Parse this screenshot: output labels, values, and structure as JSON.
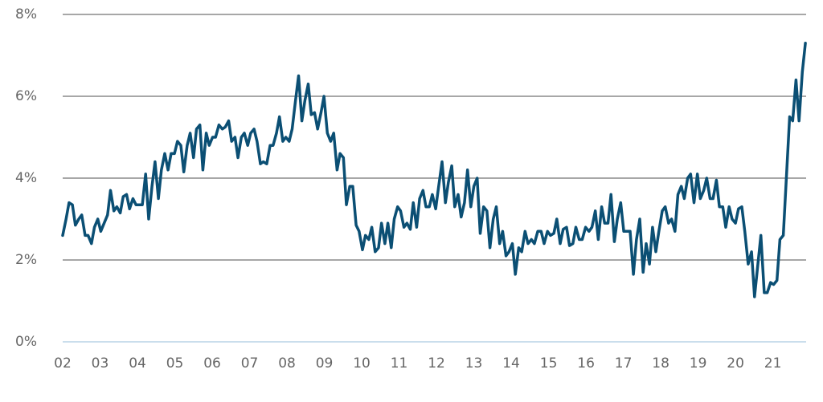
{
  "chart_data": {
    "type": "line",
    "color": "#0b4f74",
    "x": [
      2002.0,
      2002.09,
      2002.17,
      2002.26,
      2002.34,
      2002.43,
      2002.51,
      2002.6,
      2002.68,
      2002.77,
      2002.85,
      2002.94,
      2003.02,
      2003.11,
      2003.2,
      2003.28,
      2003.37,
      2003.45,
      2003.54,
      2003.62,
      2003.71,
      2003.79,
      2003.88,
      2003.96,
      2004.05,
      2004.13,
      2004.22,
      2004.3,
      2004.39,
      2004.47,
      2004.56,
      2004.64,
      2004.73,
      2004.82,
      2004.9,
      2004.99,
      2005.07,
      2005.16,
      2005.24,
      2005.33,
      2005.41,
      2005.5,
      2005.58,
      2005.67,
      2005.75,
      2005.84,
      2005.92,
      2006.01,
      2006.09,
      2006.18,
      2006.27,
      2006.35,
      2006.44,
      2006.52,
      2006.61,
      2006.69,
      2006.78,
      2006.86,
      2006.95,
      2007.03,
      2007.12,
      2007.2,
      2007.29,
      2007.37,
      2007.46,
      2007.55,
      2007.63,
      2007.72,
      2007.8,
      2007.89,
      2007.97,
      2008.06,
      2008.14,
      2008.23,
      2008.31,
      2008.4,
      2008.48,
      2008.57,
      2008.65,
      2008.74,
      2008.82,
      2008.91,
      2008.99,
      2009.08,
      2009.17,
      2009.25,
      2009.34,
      2009.42,
      2009.51,
      2009.59,
      2009.68,
      2009.76,
      2009.85,
      2009.93,
      2010.02,
      2010.1,
      2010.19,
      2010.27,
      2010.36,
      2010.45,
      2010.53,
      2010.62,
      2010.7,
      2010.79,
      2010.87,
      2010.96,
      2011.04,
      2011.13,
      2011.21,
      2011.3,
      2011.38,
      2011.47,
      2011.55,
      2011.64,
      2011.72,
      2011.81,
      2011.89,
      2011.98,
      2012.06,
      2012.15,
      2012.24,
      2012.32,
      2012.41,
      2012.49,
      2012.58,
      2012.66,
      2012.75,
      2012.83,
      2012.92,
      2013.0,
      2013.09,
      2013.17,
      2013.26,
      2013.35,
      2013.43,
      2013.52,
      2013.6,
      2013.69,
      2013.77,
      2013.86,
      2013.94,
      2014.03,
      2014.11,
      2014.2,
      2014.28,
      2014.37,
      2014.45,
      2014.54,
      2014.62,
      2014.71,
      2014.8,
      2014.88,
      2014.97,
      2015.05,
      2015.14,
      2015.22,
      2015.31,
      2015.39,
      2015.48,
      2015.56,
      2015.65,
      2015.73,
      2015.82,
      2015.9,
      2015.99,
      2016.08,
      2016.16,
      2016.25,
      2016.33,
      2016.42,
      2016.5,
      2016.59,
      2016.67,
      2016.76,
      2016.84,
      2016.93,
      2017.01,
      2017.1,
      2017.18,
      2017.27,
      2017.35,
      2017.44,
      2017.53,
      2017.61,
      2017.7,
      2017.78,
      2017.87,
      2017.95,
      2018.04,
      2018.12,
      2018.21,
      2018.29,
      2018.38,
      2018.46,
      2018.55,
      2018.63,
      2018.72,
      2018.8,
      2018.89,
      2018.98,
      2019.06,
      2019.15,
      2019.23,
      2019.32,
      2019.4,
      2019.49,
      2019.57,
      2019.66,
      2019.74,
      2019.83,
      2019.91,
      2020.0,
      2020.08,
      2020.17,
      2020.25,
      2020.34,
      2020.43,
      2020.51,
      2020.6,
      2020.68,
      2020.77,
      2020.85,
      2020.94,
      2021.02,
      2021.11,
      2021.19,
      2021.28,
      2021.36,
      2021.45,
      2021.53,
      2021.62,
      2021.7,
      2021.79,
      2021.87
    ],
    "values": [
      2.6,
      3.0,
      3.4,
      3.35,
      2.85,
      3.0,
      3.1,
      2.6,
      2.6,
      2.4,
      2.8,
      3.0,
      2.7,
      2.9,
      3.1,
      3.7,
      3.2,
      3.3,
      3.15,
      3.55,
      3.6,
      3.25,
      3.5,
      3.35,
      3.35,
      3.35,
      4.1,
      3.0,
      3.8,
      4.4,
      3.5,
      4.2,
      4.6,
      4.2,
      4.6,
      4.6,
      4.9,
      4.8,
      4.15,
      4.8,
      5.1,
      4.5,
      5.2,
      5.3,
      4.2,
      5.1,
      4.8,
      5.0,
      5.0,
      5.3,
      5.2,
      5.25,
      5.4,
      4.9,
      5.0,
      4.5,
      5.0,
      5.1,
      4.8,
      5.1,
      5.2,
      4.9,
      4.35,
      4.4,
      4.35,
      4.8,
      4.8,
      5.1,
      5.5,
      4.9,
      5.0,
      4.9,
      5.2,
      5.9,
      6.5,
      5.4,
      5.9,
      6.3,
      5.55,
      5.6,
      5.2,
      5.6,
      6.0,
      5.1,
      4.9,
      5.1,
      4.2,
      4.6,
      4.5,
      3.35,
      3.8,
      3.8,
      2.85,
      2.7,
      2.25,
      2.6,
      2.5,
      2.8,
      2.2,
      2.3,
      2.9,
      2.4,
      2.9,
      2.3,
      3.0,
      3.3,
      3.2,
      2.8,
      2.9,
      2.75,
      3.4,
      2.8,
      3.5,
      3.7,
      3.3,
      3.3,
      3.6,
      3.25,
      3.8,
      4.4,
      3.4,
      3.9,
      4.3,
      3.3,
      3.6,
      3.05,
      3.4,
      4.2,
      3.3,
      3.8,
      4.0,
      2.65,
      3.3,
      3.2,
      2.3,
      3.0,
      3.3,
      2.4,
      2.7,
      2.1,
      2.2,
      2.4,
      1.65,
      2.3,
      2.2,
      2.7,
      2.4,
      2.5,
      2.4,
      2.7,
      2.7,
      2.4,
      2.7,
      2.6,
      2.65,
      3.0,
      2.4,
      2.75,
      2.8,
      2.35,
      2.4,
      2.8,
      2.5,
      2.5,
      2.8,
      2.7,
      2.8,
      3.2,
      2.5,
      3.3,
      2.9,
      2.9,
      3.6,
      2.45,
      3.0,
      3.4,
      2.7,
      2.7,
      2.7,
      1.65,
      2.5,
      3.0,
      1.7,
      2.4,
      1.9,
      2.8,
      2.2,
      2.7,
      3.2,
      3.3,
      2.9,
      3.0,
      2.7,
      3.6,
      3.8,
      3.5,
      4.0,
      4.1,
      3.4,
      4.1,
      3.5,
      3.7,
      4.0,
      3.5,
      3.5,
      3.95,
      3.3,
      3.3,
      2.8,
      3.3,
      3.0,
      2.9,
      3.25,
      3.3,
      2.7,
      1.9,
      2.2,
      1.1,
      1.9,
      2.6,
      1.2,
      1.2,
      1.45,
      1.4,
      1.5,
      2.5,
      2.6,
      4.0,
      5.5,
      5.4,
      6.4,
      5.4,
      6.6,
      7.3
    ],
    "xlim": [
      2002,
      2021.89
    ],
    "xticks": [
      {
        "value": 2002,
        "label": "02"
      },
      {
        "value": 2003,
        "label": "03"
      },
      {
        "value": 2004,
        "label": "04"
      },
      {
        "value": 2005,
        "label": "05"
      },
      {
        "value": 2006,
        "label": "06"
      },
      {
        "value": 2007,
        "label": "07"
      },
      {
        "value": 2008,
        "label": "08"
      },
      {
        "value": 2009,
        "label": "09"
      },
      {
        "value": 2010,
        "label": "10"
      },
      {
        "value": 2011,
        "label": "11"
      },
      {
        "value": 2012,
        "label": "12"
      },
      {
        "value": 2013,
        "label": "13"
      },
      {
        "value": 2014,
        "label": "14"
      },
      {
        "value": 2015,
        "label": "15"
      },
      {
        "value": 2016,
        "label": "16"
      },
      {
        "value": 2017,
        "label": "17"
      },
      {
        "value": 2018,
        "label": "18"
      },
      {
        "value": 2019,
        "label": "19"
      },
      {
        "value": 2020,
        "label": "20"
      },
      {
        "value": 2021,
        "label": "21"
      }
    ],
    "ylim": [
      0,
      8
    ],
    "yticks": [
      {
        "value": 0,
        "label": "0%"
      },
      {
        "value": 2,
        "label": "2%"
      },
      {
        "value": 4,
        "label": "4%"
      },
      {
        "value": 6,
        "label": "6%"
      },
      {
        "value": 8,
        "label": "8%"
      }
    ],
    "grid": true
  }
}
